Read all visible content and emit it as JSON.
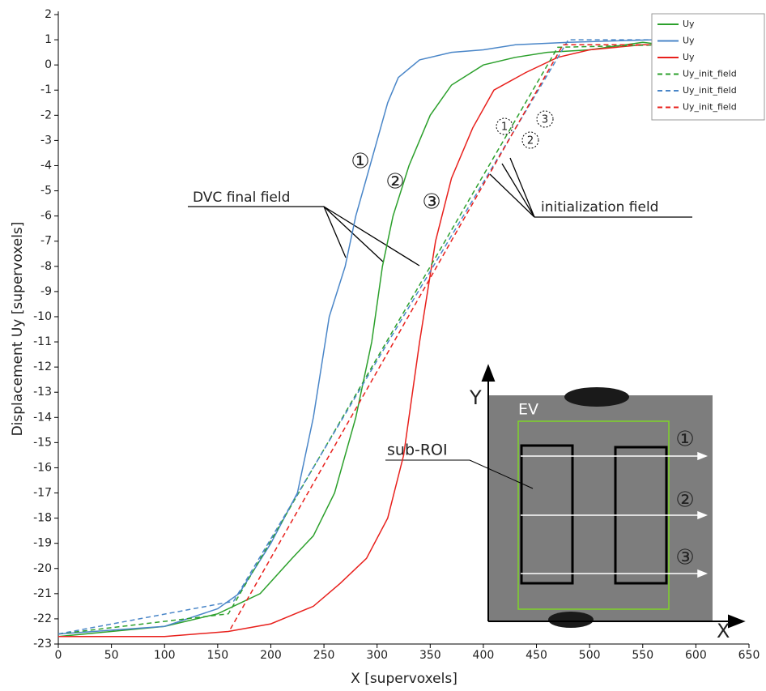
{
  "chart_data": {
    "type": "line",
    "xlabel": "X [supervoxels]",
    "ylabel": "Displacement Uy [supervoxels]",
    "xlim": [
      0,
      650
    ],
    "xticks": [
      0,
      50,
      100,
      150,
      200,
      250,
      300,
      350,
      400,
      450,
      500,
      550,
      600,
      650
    ],
    "ylim": [
      -23,
      2
    ],
    "yticks": [
      -23,
      -22,
      -21,
      -20,
      -19,
      -18,
      -17,
      -16,
      -15,
      -14,
      -13,
      -12,
      -11,
      -10,
      -9,
      -8,
      -7,
      -6,
      -5,
      -4,
      -3,
      -2,
      -1,
      0,
      1,
      2
    ],
    "legend": "upper right",
    "series": [
      {
        "name": "Uy",
        "color": "#2ca02c",
        "dashed": false,
        "x": [
          0,
          100,
          150,
          190,
          220,
          240,
          260,
          280,
          295,
          305,
          315,
          330,
          350,
          370,
          400,
          430,
          460,
          500,
          550,
          570
        ],
        "values": [
          -22.7,
          -22.3,
          -21.8,
          -21,
          -19.6,
          -18.7,
          -17,
          -14,
          -11,
          -8,
          -6,
          -4,
          -2,
          -0.8,
          0,
          0.3,
          0.5,
          0.6,
          0.9,
          0.8
        ]
      },
      {
        "name": "Uy",
        "color": "#4a86c8",
        "dashed": false,
        "x": [
          0,
          100,
          150,
          170,
          200,
          225,
          240,
          255,
          270,
          280,
          290,
          300,
          310,
          320,
          340,
          370,
          400,
          430,
          480,
          560
        ],
        "values": [
          -22.6,
          -22.3,
          -21.6,
          -21,
          -19,
          -17,
          -14,
          -10,
          -8,
          -6,
          -4.5,
          -3,
          -1.5,
          -0.5,
          0.2,
          0.5,
          0.6,
          0.8,
          0.9,
          1
        ]
      },
      {
        "name": "Uy",
        "color": "#e8201c",
        "dashed": false,
        "x": [
          0,
          100,
          160,
          200,
          240,
          265,
          290,
          310,
          325,
          340,
          355,
          370,
          390,
          410,
          440,
          470,
          500,
          550,
          570
        ],
        "values": [
          -22.7,
          -22.7,
          -22.5,
          -22.2,
          -21.5,
          -20.6,
          -19.6,
          -18,
          -15.5,
          -11,
          -7,
          -4.5,
          -2.5,
          -1,
          -0.3,
          0.3,
          0.6,
          0.8,
          0.8
        ]
      },
      {
        "name": "Uy_init_field",
        "color": "#2ca02c",
        "dashed": true,
        "x": [
          0,
          160,
          470,
          570
        ],
        "values": [
          -22.6,
          -21.8,
          0.7,
          0.8
        ]
      },
      {
        "name": "Uy_init_field",
        "color": "#4a86c8",
        "dashed": true,
        "x": [
          0,
          165,
          480,
          570
        ],
        "values": [
          -22.6,
          -21.3,
          1,
          1
        ]
      },
      {
        "name": "Uy_init_field",
        "color": "#e8201c",
        "dashed": true,
        "x": [
          162,
          475,
          570
        ],
        "values": [
          -22.4,
          0.8,
          0.8
        ]
      }
    ],
    "annotations": {
      "final_field": "DVC final field",
      "init_field": "initialization field",
      "curve_labels": [
        "①",
        "②",
        "③"
      ],
      "init_labels": [
        "1",
        "2",
        "3"
      ],
      "inset": {
        "roi": "sub-ROI",
        "ev": "EV",
        "lines": [
          "①",
          "②",
          "③"
        ],
        "x_axis": "X",
        "y_axis": "Y"
      }
    }
  }
}
